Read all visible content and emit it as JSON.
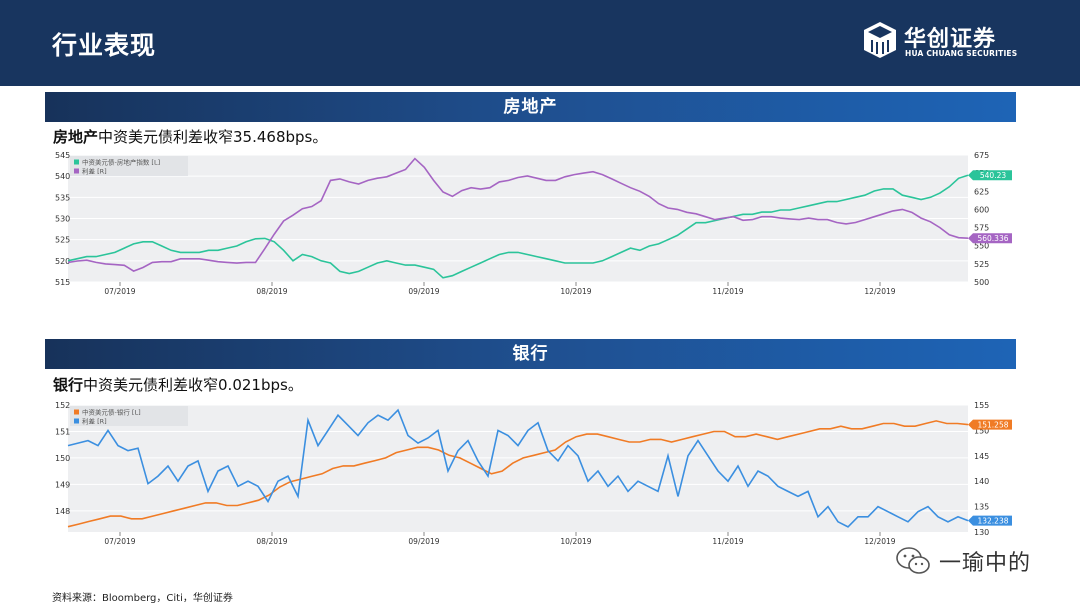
{
  "header": {
    "title": "行业表现",
    "logo_cn": "华创证券",
    "logo_en": "HUA CHUANG SECURITIES"
  },
  "sections": [
    {
      "title": "房地产",
      "subtitle_bold": "房地产",
      "subtitle_rest": "中资美元债利差收窄35.468bps。"
    },
    {
      "title": "银行",
      "subtitle_bold": "银行",
      "subtitle_rest": "中资美元债利差收窄0.021bps。"
    }
  ],
  "source": "资料来源：Bloomberg，Citi，华创证券",
  "watermark": "一瑜中的",
  "colors": {
    "header_bg": "#18355f",
    "green": "#2bc49a",
    "purple": "#a565c3",
    "orange": "#f07b25",
    "blue": "#3b8fe0",
    "plot_bg": "#eeeff1"
  },
  "chart_data": [
    {
      "type": "line",
      "x_ticks": [
        "07/2019",
        "08/2019",
        "09/2019",
        "10/2019",
        "11/2019",
        "12/2019"
      ],
      "y_left": {
        "ticks": [
          515,
          520,
          525,
          530,
          535,
          540,
          545
        ],
        "range": [
          515,
          545
        ]
      },
      "y_right": {
        "ticks": [
          500,
          525,
          550,
          575,
          600,
          625,
          650,
          675
        ],
        "range": [
          500,
          675
        ]
      },
      "legend": "top-left",
      "series": [
        {
          "name": "中资美元债-房地产指数 [L]",
          "axis": "left",
          "color": "#2bc49a",
          "last_label": "540.23",
          "values": [
            520,
            520.5,
            521,
            521,
            521.5,
            522,
            523,
            524,
            524.5,
            524.5,
            523.5,
            522.5,
            522,
            522,
            522,
            522.5,
            522.5,
            523,
            523.5,
            524.5,
            525.2,
            525.3,
            524.5,
            522.5,
            520,
            521.5,
            521,
            520,
            519.5,
            517.5,
            517,
            517.5,
            518.5,
            519.5,
            520,
            519.5,
            519,
            519,
            518.5,
            518,
            516,
            516.5,
            517.5,
            518.5,
            519.5,
            520.5,
            521.5,
            522,
            522,
            521.5,
            521,
            520.5,
            520,
            519.5,
            519.5,
            519.5,
            519.5,
            520,
            521,
            522,
            523,
            522.5,
            523.5,
            524,
            525,
            526,
            527.5,
            529,
            529,
            529.5,
            530,
            530.5,
            531,
            531,
            531.5,
            531.5,
            532,
            532,
            532.5,
            533,
            533.5,
            534,
            534,
            534.5,
            535,
            535.5,
            536.5,
            537,
            537,
            535.5,
            535,
            534.5,
            535,
            536,
            537.5,
            539.5,
            540.23
          ]
        },
        {
          "name": "利差 [R]",
          "axis": "right",
          "color": "#a565c3",
          "last_label": "560.336",
          "values": [
            527,
            529,
            530,
            527,
            525,
            524,
            523,
            515,
            520,
            527,
            528,
            528,
            532,
            532,
            532,
            530,
            528,
            527,
            526,
            527,
            527,
            546,
            566,
            584,
            592,
            601,
            604,
            612,
            640,
            642,
            638,
            635,
            640,
            643,
            645,
            650,
            655,
            670,
            658,
            640,
            624,
            618,
            626,
            630,
            628,
            630,
            638,
            640,
            644,
            646,
            643,
            640,
            640,
            645,
            648,
            650,
            652,
            648,
            642,
            636,
            630,
            625,
            618,
            608,
            602,
            600,
            596,
            594,
            590,
            586,
            588,
            590,
            585,
            586,
            590,
            590,
            588,
            587,
            586,
            588,
            586,
            586,
            582,
            580,
            582,
            586,
            590,
            594,
            598,
            600,
            596,
            588,
            583,
            575,
            565,
            561,
            560.336
          ]
        }
      ]
    },
    {
      "type": "line",
      "x_ticks": [
        "07/2019",
        "08/2019",
        "09/2019",
        "10/2019",
        "11/2019",
        "12/2019"
      ],
      "y_left": {
        "ticks": [
          148,
          149,
          150,
          151,
          152
        ],
        "range": [
          147.2,
          152
        ]
      },
      "y_right": {
        "ticks": [
          130,
          135,
          140,
          145,
          150,
          155
        ],
        "range": [
          130,
          155
        ]
      },
      "legend": "top-left",
      "series": [
        {
          "name": "中资美元债-银行 [L]",
          "axis": "left",
          "color": "#f07b25",
          "last_label": "151.258",
          "values": [
            147.4,
            147.5,
            147.6,
            147.7,
            147.8,
            147.8,
            147.7,
            147.7,
            147.8,
            147.9,
            148,
            148.1,
            148.2,
            148.3,
            148.3,
            148.2,
            148.2,
            148.3,
            148.4,
            148.6,
            148.9,
            149.1,
            149.2,
            149.3,
            149.4,
            149.6,
            149.7,
            149.7,
            149.8,
            149.9,
            150,
            150.2,
            150.3,
            150.4,
            150.4,
            150.3,
            150.1,
            150,
            149.8,
            149.6,
            149.4,
            149.5,
            149.8,
            150,
            150.1,
            150.2,
            150.3,
            150.6,
            150.8,
            150.9,
            150.9,
            150.8,
            150.7,
            150.6,
            150.6,
            150.7,
            150.7,
            150.6,
            150.7,
            150.8,
            150.9,
            151,
            151,
            150.8,
            150.8,
            150.9,
            150.8,
            150.7,
            150.8,
            150.9,
            151,
            151.1,
            151.1,
            151.2,
            151.1,
            151.1,
            151.2,
            151.3,
            151.3,
            151.2,
            151.2,
            151.3,
            151.4,
            151.3,
            151.3,
            151.258
          ]
        },
        {
          "name": "利差 [R]",
          "axis": "right",
          "color": "#3b8fe0",
          "last_label": "132.238",
          "values": [
            147,
            147.5,
            148,
            147,
            150,
            147,
            146,
            146.5,
            139.5,
            141,
            143,
            140,
            143,
            144,
            138,
            142,
            143,
            139,
            140,
            139,
            136,
            140,
            141,
            137,
            152,
            147,
            150,
            153,
            151,
            149,
            151.5,
            153,
            152,
            154,
            149,
            147.5,
            148.5,
            150,
            142,
            146,
            148,
            144,
            141,
            150,
            149,
            147,
            150,
            151.5,
            146,
            144,
            147,
            145,
            140,
            142,
            139,
            141,
            138,
            140,
            139,
            138,
            145,
            137,
            145,
            148,
            145,
            142,
            140,
            143,
            139,
            142,
            141,
            139,
            138,
            137,
            138,
            133,
            135,
            132,
            131,
            133,
            133,
            135,
            134,
            133,
            132,
            134,
            135,
            133,
            132,
            133,
            132.238
          ]
        }
      ]
    }
  ]
}
